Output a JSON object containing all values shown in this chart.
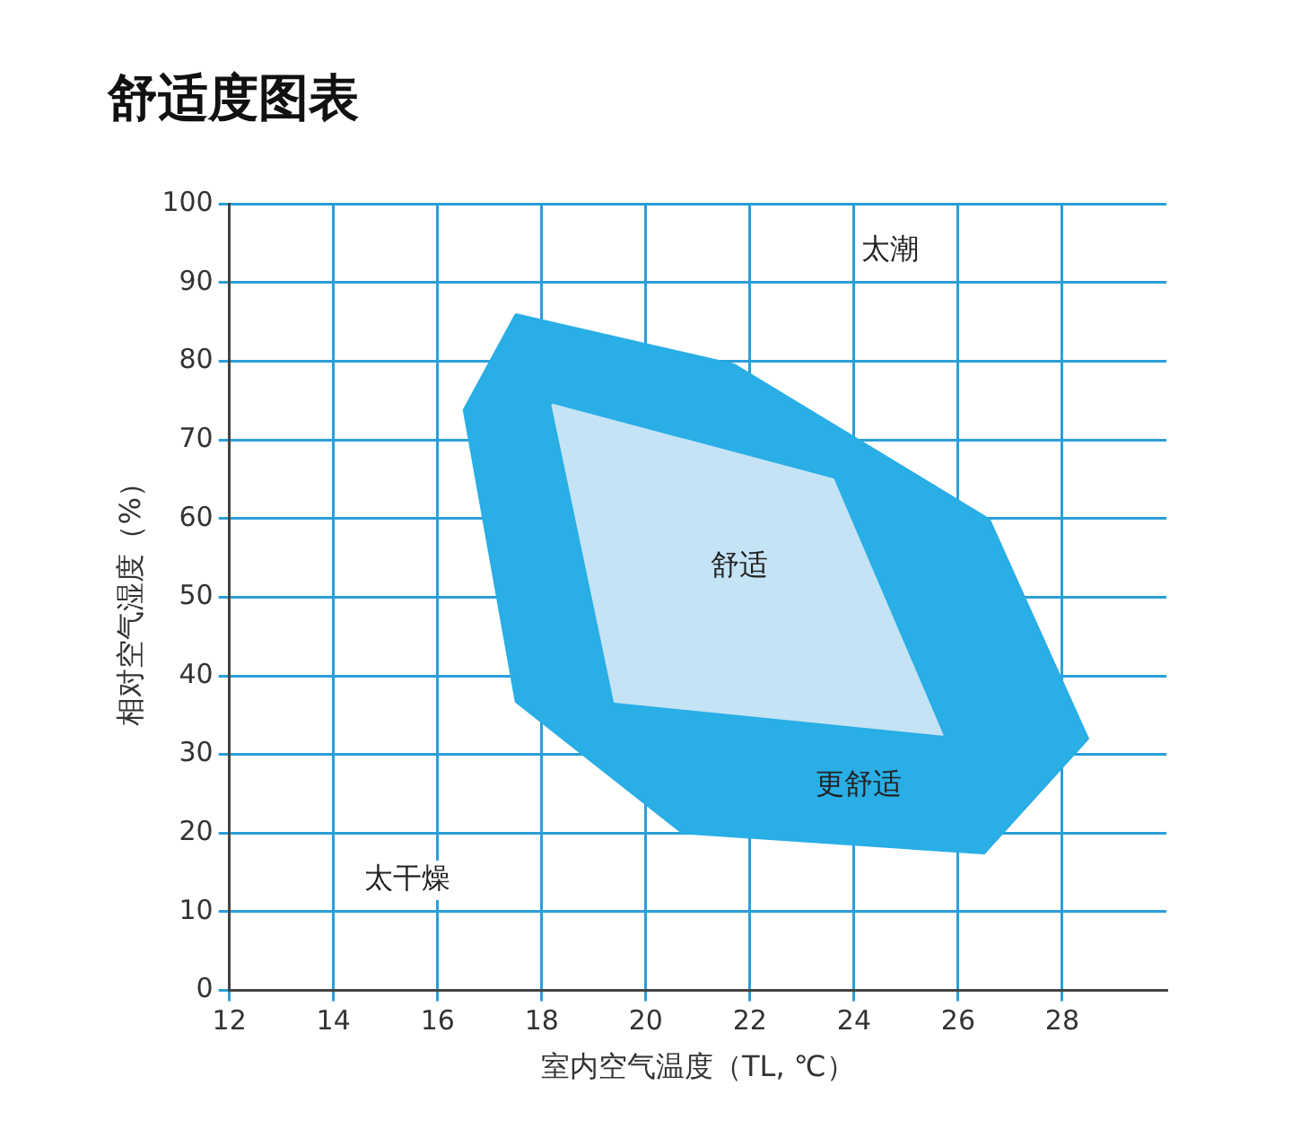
{
  "chart_data": {
    "type": "area",
    "title": "舒适度图表",
    "xlabel": "室内空气温度（TL, ℃）",
    "ylabel": "相对空气湿度（%）",
    "xlim": [
      12,
      30
    ],
    "xticks": [
      12,
      14,
      16,
      18,
      20,
      22,
      24,
      26,
      28
    ],
    "ylim": [
      0,
      100
    ],
    "yticks": [
      0,
      10,
      20,
      30,
      40,
      50,
      60,
      70,
      80,
      90,
      100
    ],
    "grid": true,
    "legend": false,
    "marker": "none",
    "series": [
      {
        "color": "#29aee6",
        "x": [
          17.5,
          21.7,
          26.6,
          28.5,
          26.5,
          20.7,
          17.5,
          16.5
        ],
        "values": [
          86,
          79.6,
          59.9,
          32,
          17.4,
          20,
          36.7,
          73.8
        ]
      },
      {
        "color": "#c4e3f5",
        "x": [
          18.2,
          23.6,
          25.7,
          19.4
        ],
        "values": [
          74.5,
          65,
          32.5,
          36.7
        ]
      }
    ],
    "annotations": [
      "太潮",
      "舒适",
      "更舒适",
      "太干燥"
    ]
  }
}
